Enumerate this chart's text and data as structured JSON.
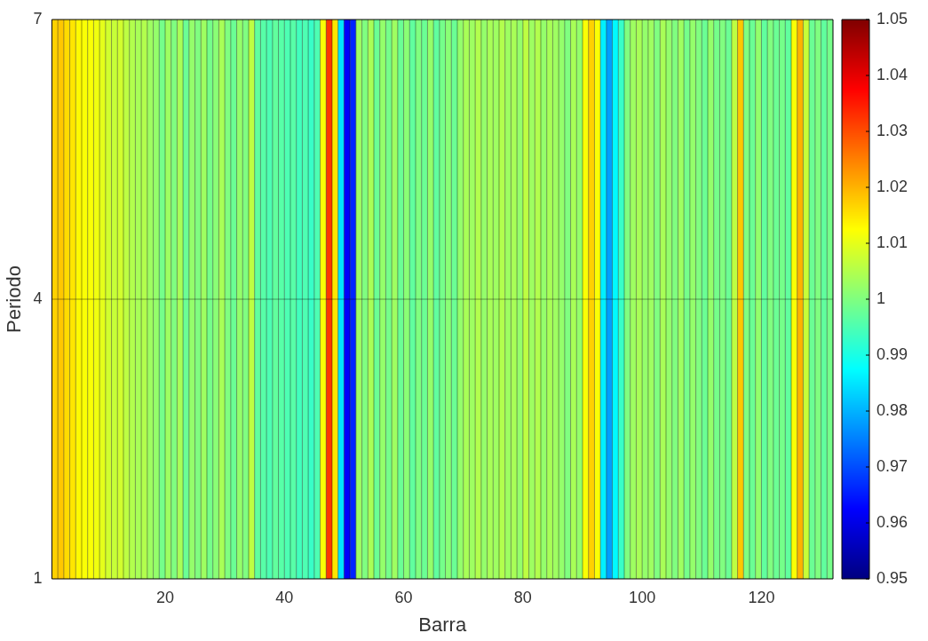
{
  "chart_data": {
    "type": "heatmap",
    "xlabel": "Barra",
    "ylabel": "Periodo",
    "x": [
      1.5,
      2.5,
      3.5,
      4.5,
      5.5,
      6.5,
      7.5,
      8.5,
      9.5,
      10.5,
      11.5,
      12.5,
      13.5,
      14.5,
      15.5,
      16.5,
      17.5,
      18.5,
      19.5,
      20.5,
      21.5,
      22.5,
      23.5,
      24.5,
      25.5,
      26.5,
      27.5,
      28.5,
      29.5,
      30.5,
      31.5,
      32.5,
      33.5,
      34.5,
      35.5,
      36.5,
      37.5,
      38.5,
      39.5,
      40.5,
      41.5,
      42.5,
      43.5,
      44.5,
      45.5,
      46.5,
      47.5,
      48.5,
      49.5,
      50.5,
      51.5,
      52.5,
      53.5,
      54.5,
      55.5,
      56.5,
      57.5,
      58.5,
      59.5,
      60.5,
      61.5,
      62.5,
      63.5,
      64.5,
      65.5,
      66.5,
      67.5,
      68.5,
      69.5,
      70.5,
      71.5,
      72.5,
      73.5,
      74.5,
      75.5,
      76.5,
      77.5,
      78.5,
      79.5,
      80.5,
      81.5,
      82.5,
      83.5,
      84.5,
      85.5,
      86.5,
      87.5,
      88.5,
      89.5,
      90.5,
      91.5,
      92.5,
      93.5,
      94.5,
      95.5,
      96.5,
      97.5,
      98.5,
      99.5,
      100.5,
      101.5,
      102.5,
      103.5,
      104.5,
      105.5,
      106.5,
      107.5,
      108.5,
      109.5,
      110.5,
      111.5,
      112.5,
      113.5,
      114.5,
      115.5,
      116.5,
      117.5,
      118.5,
      119.5,
      120.5,
      121.5,
      122.5,
      123.5,
      124.5,
      125.5,
      126.5,
      127.5,
      128.5,
      129.5,
      130.5,
      131.5
    ],
    "xlim": [
      1,
      132
    ],
    "xticks": [
      20,
      40,
      60,
      80,
      100,
      120
    ],
    "ylim": [
      1,
      7
    ],
    "yticks": [
      1,
      4,
      7
    ],
    "cells": [
      [
        1.017,
        1.018,
        1.016,
        1.015,
        1.013,
        1.012,
        1.012,
        1.011,
        1.01,
        1.008,
        1.007,
        1.008,
        1.006,
        1.005,
        1.004,
        1.005,
        1.003,
        1.002,
        0.999,
        1.003,
        1.0,
        1.004,
        0.998,
        1.002,
        1.0,
        1.003,
        0.999,
        1.001,
        1.004,
        1.0,
        0.998,
        1.002,
        1.0,
        1.006,
        0.997,
        0.996,
        0.995,
        0.997,
        0.996,
        0.995,
        0.996,
        0.994,
        0.995,
        0.993,
        0.995,
        1.012,
        1.032,
        1.015,
        0.985,
        0.962,
        0.966,
        1.003,
        1.0,
        1.004,
        0.998,
        1.002,
        0.999,
        1.003,
        0.998,
        1.001,
        0.997,
        1.0,
        0.998,
        1.002,
        0.997,
        0.999,
        1.001,
        0.998,
        1.002,
        1.004,
        1.003,
        1.005,
        1.002,
        1.004,
        1.003,
        1.005,
        1.003,
        1.004,
        1.002,
        1.006,
        1.003,
        1.005,
        1.002,
        1.004,
        1.003,
        1.002,
        1.0,
        1.004,
        1.002,
        1.012,
        1.017,
        1.012,
        0.986,
        0.978,
        0.987,
        0.993,
        1.0,
        1.003,
        1.004,
        1.002,
        1.003,
        1.0,
        1.004,
        1.002,
        1.0,
        1.003,
        0.999,
        1.002,
        1.0,
        0.998,
        1.002,
        0.999,
        1.0,
        0.998,
        1.006,
        1.018,
        1.0,
        0.998,
        1.002,
        0.997,
        1.0,
        0.998,
        0.999,
        0.997,
        1.012,
        1.02,
        1.007,
        0.998,
        1.0,
        0.997,
        0.999
      ],
      [
        1.017,
        1.018,
        1.016,
        1.015,
        1.013,
        1.012,
        1.012,
        1.011,
        1.01,
        1.008,
        1.007,
        1.008,
        1.006,
        1.005,
        1.004,
        1.005,
        1.003,
        1.002,
        0.999,
        1.003,
        1.0,
        1.004,
        0.998,
        1.002,
        1.0,
        1.003,
        0.999,
        1.001,
        1.004,
        1.0,
        0.998,
        1.002,
        1.0,
        1.006,
        0.997,
        0.996,
        0.995,
        0.997,
        0.996,
        0.995,
        0.996,
        0.994,
        0.995,
        0.993,
        0.995,
        1.012,
        1.032,
        1.015,
        0.985,
        0.962,
        0.966,
        1.003,
        1.0,
        1.004,
        0.998,
        1.002,
        0.999,
        1.003,
        0.998,
        1.001,
        0.997,
        1.0,
        0.998,
        1.002,
        0.997,
        0.999,
        1.001,
        0.998,
        1.002,
        1.004,
        1.003,
        1.005,
        1.002,
        1.004,
        1.003,
        1.005,
        1.003,
        1.004,
        1.002,
        1.006,
        1.003,
        1.005,
        1.002,
        1.004,
        1.003,
        1.002,
        1.0,
        1.004,
        1.002,
        1.012,
        1.017,
        1.012,
        0.986,
        0.978,
        0.987,
        0.993,
        1.0,
        1.003,
        1.004,
        1.002,
        1.003,
        1.0,
        1.004,
        1.002,
        1.0,
        1.003,
        0.999,
        1.002,
        1.0,
        0.998,
        1.002,
        0.999,
        1.0,
        0.998,
        1.006,
        1.018,
        1.0,
        0.998,
        1.002,
        0.997,
        1.0,
        0.998,
        0.999,
        0.997,
        1.012,
        1.02,
        1.007,
        0.998,
        1.0,
        0.997,
        0.999
      ]
    ],
    "grid": true,
    "clim": [
      0.95,
      1.05
    ],
    "cticks": [
      0.95,
      0.96,
      0.97,
      0.98,
      0.99,
      1,
      1.01,
      1.02,
      1.03,
      1.04,
      1.05
    ]
  }
}
